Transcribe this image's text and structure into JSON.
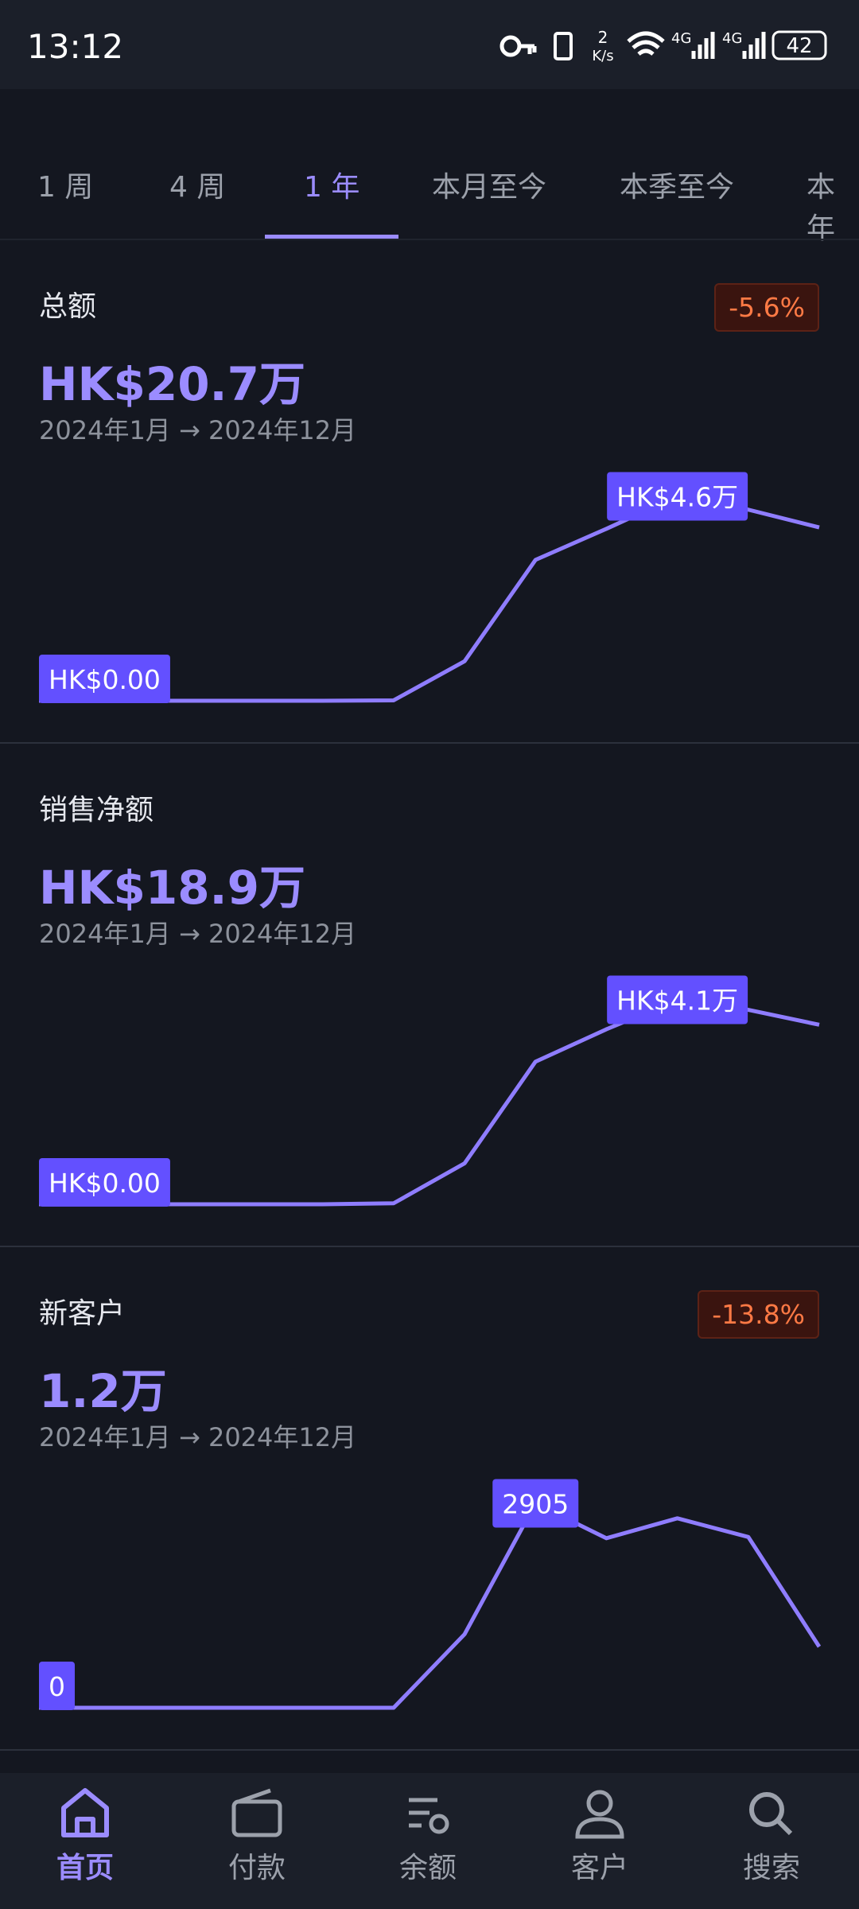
{
  "status_bar": {
    "time": "13:12",
    "speed": "2",
    "speed_unit": "K/s",
    "net1": "4G",
    "net2": "4G",
    "battery": "42"
  },
  "range_tabs": {
    "items": [
      "1 周",
      "4 周",
      "1 年",
      "本月至今",
      "本季至今",
      "本年"
    ],
    "active": 2
  },
  "cards": [
    {
      "title": "总额",
      "badge": "-5.6%",
      "value": "HK$20.7万",
      "period": "2024年1月 → 2024年12月",
      "chart": {
        "type": "line",
        "color": "#8f7dff",
        "ylim": [
          0,
          4.6
        ],
        "values": [
          0,
          0,
          0,
          0,
          0,
          0.01,
          0.89,
          3.17,
          3.87,
          4.6,
          4.3,
          3.9
        ],
        "value_labels": [
          "HK$0.00",
          null,
          null,
          null,
          null,
          null,
          null,
          null,
          null,
          "HK$4.6万",
          null,
          null
        ]
      }
    },
    {
      "title": "销售净额",
      "value": "HK$18.9万",
      "period": "2024年1月 → 2024年12月",
      "chart": {
        "type": "line",
        "color": "#8f7dff",
        "ylim": [
          0,
          4.1
        ],
        "values": [
          0,
          0,
          0,
          0,
          0,
          0.02,
          0.82,
          2.86,
          3.51,
          4.1,
          3.9,
          3.6
        ],
        "value_labels": [
          "HK$0.00",
          null,
          null,
          null,
          null,
          null,
          null,
          null,
          null,
          "HK$4.1万",
          null,
          null
        ]
      }
    },
    {
      "title": "新客户",
      "badge": "-13.8%",
      "value": "1.2万",
      "period": "2024年1月 → 2024年12月",
      "chart": {
        "type": "line",
        "color": "#8f7dff",
        "ylim": [
          0,
          2905
        ],
        "values": [
          0,
          0,
          0,
          0,
          0,
          0,
          1045,
          2905,
          2409,
          2692,
          2427,
          868
        ],
        "value_labels": [
          "0",
          null,
          null,
          null,
          null,
          null,
          null,
          "2905",
          null,
          null,
          null,
          null
        ]
      }
    }
  ],
  "nav": {
    "items": [
      "首页",
      "付款",
      "余额",
      "客户",
      "搜索"
    ],
    "active": 0
  }
}
